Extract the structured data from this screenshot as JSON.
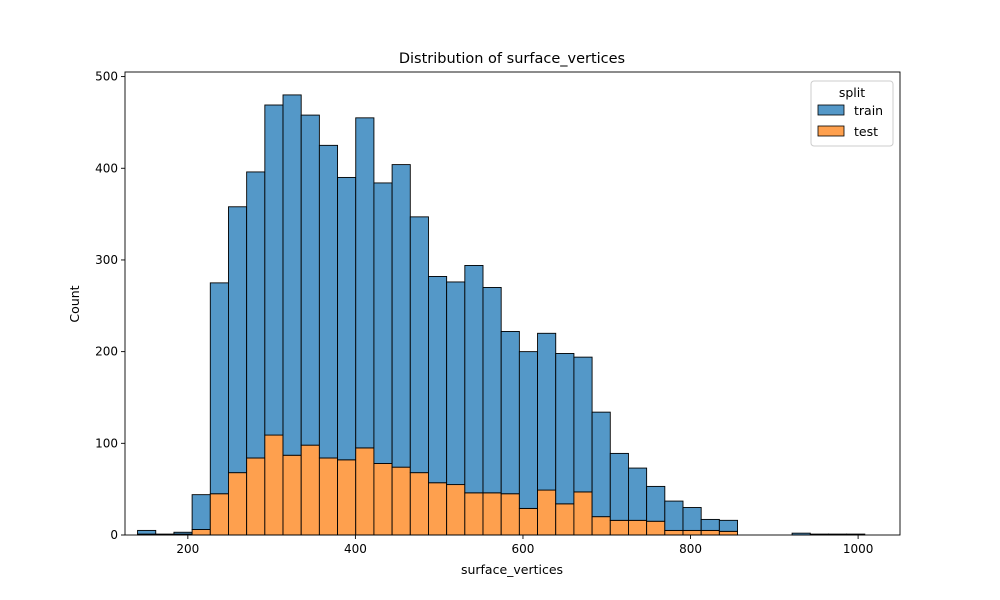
{
  "chart_data": {
    "type": "bar",
    "title": "Distribution of surface_vertices",
    "xlabel": "surface_vertices",
    "ylabel": "Count",
    "xlim": [
      125,
      1050
    ],
    "ylim": [
      0,
      505
    ],
    "xticks": [
      200,
      400,
      600,
      800,
      1000
    ],
    "yticks": [
      0,
      100,
      200,
      300,
      400,
      500
    ],
    "grid": false,
    "legend": {
      "title": "split",
      "position": "top-right"
    },
    "bin_edges": [
      140,
      161.7,
      183.4,
      205.1,
      226.8,
      248.5,
      270.2,
      291.9,
      313.6,
      335.3,
      357,
      378.7,
      400.4,
      422.1,
      443.8,
      465.5,
      487.2,
      508.9,
      530.6,
      552.3,
      574,
      595.7,
      617.4,
      639.1,
      660.8,
      682.5,
      704.2,
      725.9,
      747.6,
      769.3,
      791,
      812.7,
      834.4,
      856.1,
      877.8,
      899.5,
      921.2,
      942.9,
      964.6,
      986.3,
      1008
    ],
    "stacking": "stacked",
    "series": [
      {
        "name": "train",
        "color": "#5498c8",
        "values": [
          4,
          1,
          2,
          38,
          230,
          290,
          312,
          360,
          393,
          360,
          341,
          308,
          360,
          306,
          330,
          279,
          225,
          221,
          248,
          224,
          177,
          171,
          171,
          164,
          147,
          114,
          73,
          57,
          38,
          32,
          25,
          12,
          12,
          0,
          0,
          0,
          2,
          1,
          1,
          1
        ]
      },
      {
        "name": "test",
        "color": "#fea04e",
        "values": [
          1,
          0,
          1,
          6,
          45,
          68,
          84,
          109,
          87,
          98,
          84,
          82,
          95,
          78,
          74,
          68,
          57,
          55,
          46,
          46,
          45,
          29,
          49,
          34,
          47,
          20,
          16,
          16,
          15,
          5,
          5,
          5,
          4,
          0,
          0,
          0,
          0,
          0,
          0,
          0
        ]
      }
    ]
  }
}
